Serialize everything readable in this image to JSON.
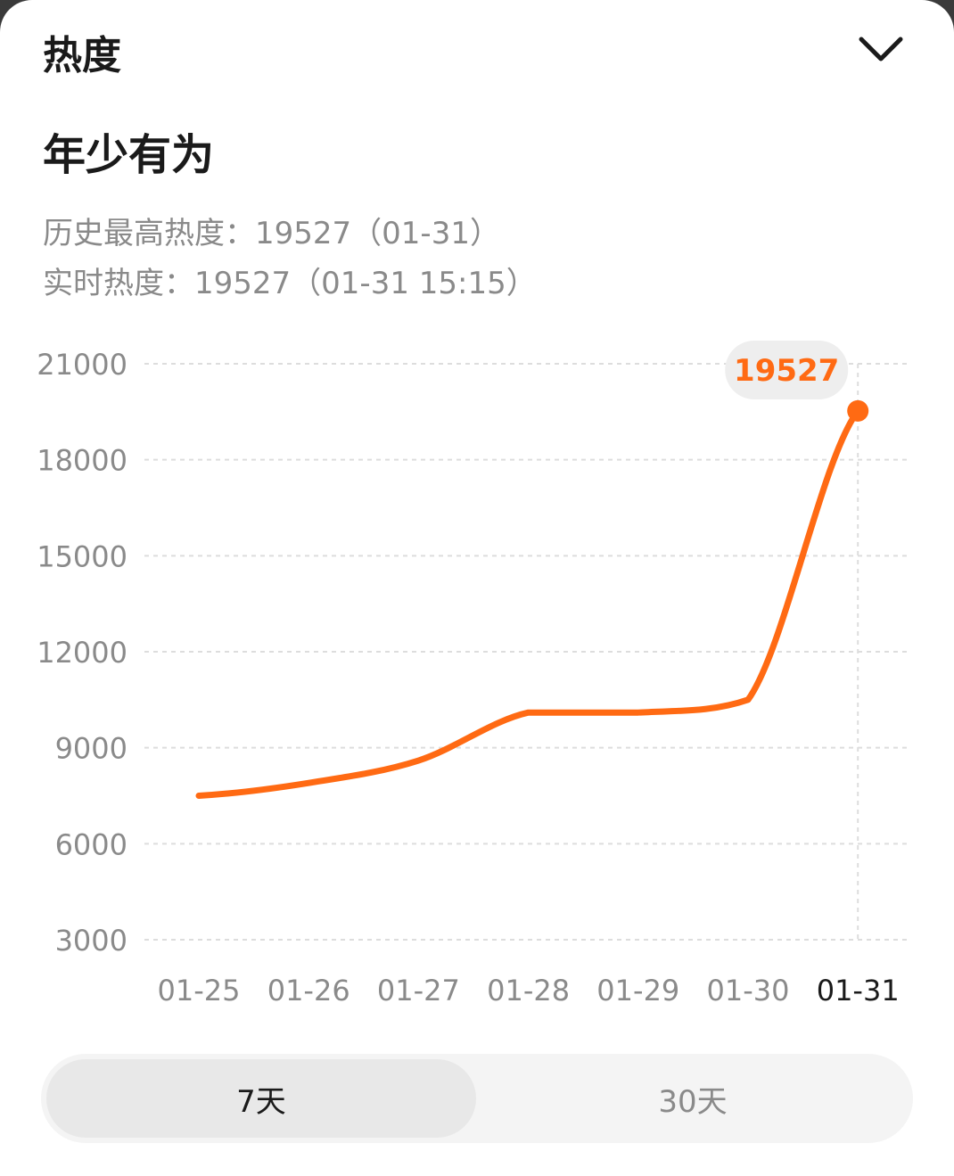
{
  "header": {
    "title": "热度"
  },
  "topic": {
    "title": "年少有为"
  },
  "stats": {
    "history_max": "历史最高热度：19527（01-31）",
    "realtime": "实时热度：19527（01-31 15:15）"
  },
  "colors": {
    "line": "#ff6a13",
    "tooltip_text": "#ff6a13",
    "tooltip_bg": "#eeeeee",
    "axis_text": "#8a8a8a",
    "grid": "#dddddd"
  },
  "icons": {
    "collapse": "chevron-down-icon"
  },
  "chart_data": {
    "type": "line",
    "categories": [
      "01-25",
      "01-26",
      "01-27",
      "01-28",
      "01-29",
      "01-30",
      "01-31"
    ],
    "series": [
      {
        "values": [
          7500,
          7900,
          8600,
          10100,
          10100,
          10500,
          19527
        ]
      }
    ],
    "y_ticks": [
      "21000",
      "18000",
      "15000",
      "12000",
      "9000",
      "6000",
      "3000"
    ],
    "ylim": [
      3000,
      21000
    ],
    "grid": true,
    "highlight_category": "01-31",
    "tooltip": {
      "value": "19527"
    }
  },
  "range_tabs": [
    {
      "label": "7天",
      "selected": true
    },
    {
      "label": "30天",
      "selected": false
    }
  ]
}
